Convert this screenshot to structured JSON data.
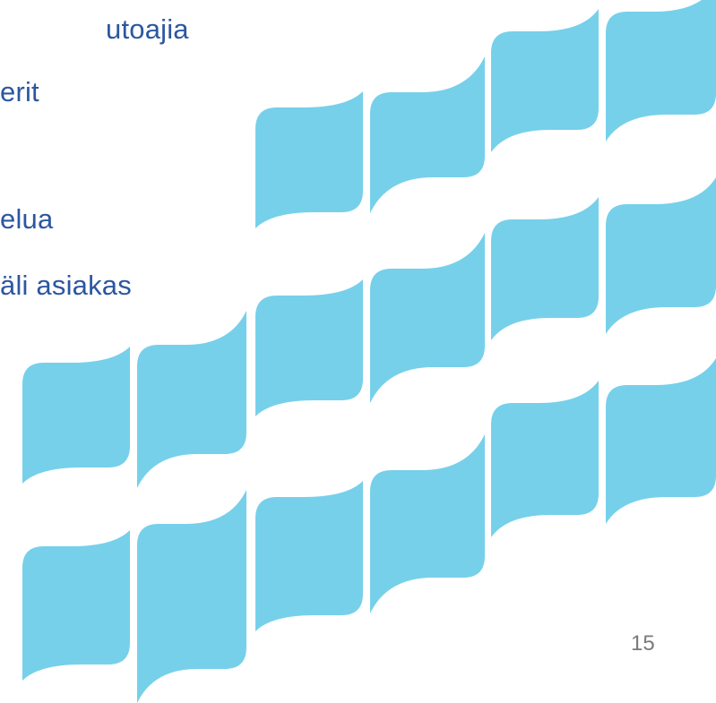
{
  "slide": {
    "bullets": [
      "utoajia",
      "erit",
      "elua",
      "äli asiakas"
    ],
    "page_number": "15"
  },
  "theme": {
    "text_color": "#2c57a0",
    "wave_color": "#76d0ea",
    "background": "#ffffff"
  },
  "decor": {
    "icon": "wave-tiles-decoration"
  }
}
